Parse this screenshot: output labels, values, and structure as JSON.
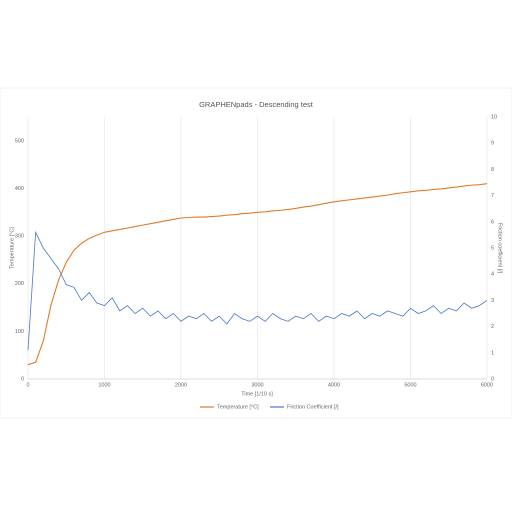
{
  "chart_data": {
    "type": "line",
    "title": "GRAPHENpads - Descending test",
    "x_label": "Time [1/10 s]",
    "y_label": "Temperature [°C]",
    "y2_label": "Friction coefficient [/]",
    "x": [
      0,
      100,
      200,
      300,
      400,
      500,
      600,
      700,
      800,
      900,
      1000,
      1100,
      1200,
      1300,
      1400,
      1500,
      1600,
      1700,
      1800,
      1900,
      2000,
      2100,
      2200,
      2300,
      2400,
      2500,
      2600,
      2700,
      2800,
      2900,
      3000,
      3100,
      3200,
      3300,
      3400,
      3500,
      3600,
      3700,
      3800,
      3900,
      4000,
      4100,
      4200,
      4300,
      4400,
      4500,
      4600,
      4700,
      4800,
      4900,
      5000,
      5100,
      5200,
      5300,
      5400,
      5500,
      5600,
      5700,
      5800,
      5900,
      6000
    ],
    "series": [
      {
        "name": "Temperature [°C]",
        "color": "#e07b27",
        "values": [
          30,
          35,
          80,
          155,
          208,
          245,
          270,
          285,
          295,
          302,
          308,
          311,
          314,
          317,
          320,
          323,
          326,
          329,
          332,
          335,
          338,
          339,
          340,
          340,
          341,
          342,
          344,
          345,
          347,
          348,
          350,
          351,
          353,
          354,
          356,
          358,
          361,
          363,
          366,
          369,
          372,
          374,
          376,
          378,
          380,
          382,
          384,
          386,
          389,
          391,
          393,
          395,
          396,
          398,
          399,
          401,
          403,
          405,
          407,
          408,
          410
        ]
      },
      {
        "name": "Friction Coefficient [/]",
        "color": "#4a78c8",
        "axis": "y2",
        "values": [
          1.1,
          5.6,
          5.0,
          4.6,
          4.2,
          3.6,
          3.5,
          3.0,
          3.3,
          2.9,
          2.8,
          3.1,
          2.6,
          2.8,
          2.5,
          2.7,
          2.4,
          2.6,
          2.3,
          2.5,
          2.2,
          2.4,
          2.3,
          2.5,
          2.2,
          2.4,
          2.1,
          2.5,
          2.3,
          2.2,
          2.4,
          2.2,
          2.5,
          2.3,
          2.2,
          2.4,
          2.3,
          2.5,
          2.2,
          2.4,
          2.3,
          2.5,
          2.4,
          2.6,
          2.3,
          2.5,
          2.4,
          2.6,
          2.5,
          2.4,
          2.7,
          2.5,
          2.6,
          2.8,
          2.5,
          2.7,
          2.6,
          2.9,
          2.7,
          2.8,
          3.0
        ]
      }
    ],
    "xlim": [
      0,
      6000
    ],
    "xticks": [
      0,
      1000,
      2000,
      3000,
      4000,
      5000,
      6000
    ],
    "ylim": [
      0,
      550
    ],
    "yticks": [
      0,
      100,
      200,
      300,
      400,
      500
    ],
    "y2lim": [
      0,
      10
    ],
    "y2ticks": [
      0,
      1,
      2,
      3,
      4,
      5,
      6,
      7,
      8,
      9,
      10
    ],
    "grid": true,
    "legend": "bottom"
  }
}
